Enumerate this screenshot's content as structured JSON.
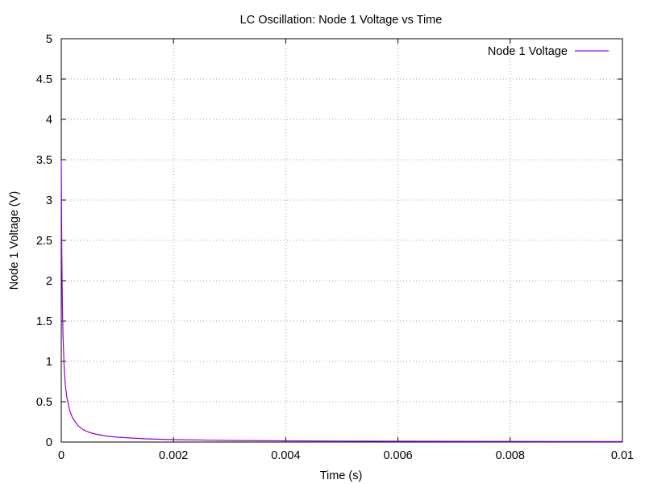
{
  "chart_data": {
    "type": "line",
    "title": "LC Oscillation: Node 1 Voltage vs Time",
    "xlabel": "Time (s)",
    "ylabel": "Node 1 Voltage (V)",
    "xlim": [
      0,
      0.01
    ],
    "ylim": [
      0,
      5
    ],
    "x_ticks": [
      0,
      0.002,
      0.004,
      0.006,
      0.008,
      0.01
    ],
    "x_tick_labels": [
      "0",
      "0.002",
      "0.004",
      "0.006",
      "0.008",
      "0.01"
    ],
    "y_ticks": [
      0,
      0.5,
      1,
      1.5,
      2,
      2.5,
      3,
      3.5,
      4,
      4.5,
      5
    ],
    "y_tick_labels": [
      "0",
      "0.5",
      "1",
      "1.5",
      "2",
      "2.5",
      "3",
      "3.5",
      "4",
      "4.5",
      "5"
    ],
    "grid": true,
    "legend_position": "top-right",
    "series": [
      {
        "name": "Node 1 Voltage",
        "color": "#9400d3",
        "x": [
          0,
          1e-05,
          2e-05,
          3e-05,
          5e-05,
          7e-05,
          0.0001,
          0.00015,
          0.0002,
          0.0003,
          0.0004,
          0.0005,
          0.0006,
          0.0008,
          0.001,
          0.0015,
          0.002,
          0.003,
          0.004,
          0.005,
          0.006,
          0.007,
          0.008,
          0.009,
          0.01
        ],
        "y": [
          3.5,
          2.3,
          1.7,
          1.35,
          0.95,
          0.72,
          0.55,
          0.39,
          0.3,
          0.2,
          0.15,
          0.12,
          0.1,
          0.075,
          0.06,
          0.04,
          0.03,
          0.02,
          0.015,
          0.012,
          0.01,
          0.009,
          0.008,
          0.007,
          0.006
        ]
      }
    ]
  }
}
